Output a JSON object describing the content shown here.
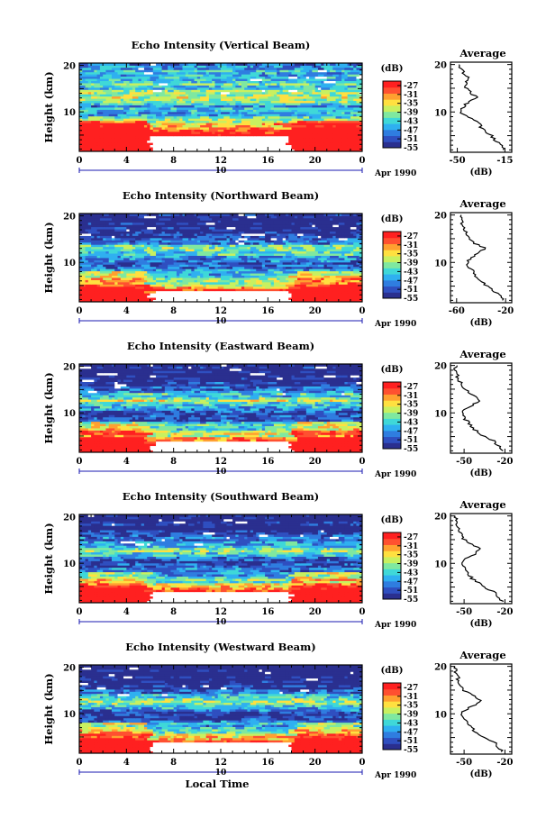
{
  "figure": {
    "xlabel": "Local Time",
    "date_label": "Apr 1990",
    "day_label": "10",
    "cbar_unit": "(dB)",
    "avg_title": "Average",
    "avg_xlabel": "(dB)",
    "ylabel": "Height (km)"
  },
  "colors": {
    "scale": [
      "#2a2f8f",
      "#2f4fc0",
      "#2f7de0",
      "#2fb0f0",
      "#3fd8d8",
      "#7fe8a0",
      "#c8f060",
      "#ffe040",
      "#ffa030",
      "#ff5030",
      "#ff2020"
    ],
    "missing": "#ffffff"
  },
  "chart_data": [
    {
      "type": "heatmap",
      "title": "Echo Intensity (Vertical Beam)",
      "xlabel": "",
      "ylabel": "Height (km)",
      "xlim": [
        0,
        24
      ],
      "ylim": [
        1.5,
        20.5
      ],
      "x_ticks": [
        "0",
        "4",
        "8",
        "12",
        "16",
        "20",
        "0"
      ],
      "y_ticks": [
        "20",
        "10"
      ],
      "colorbar": {
        "label": "(dB)",
        "ticks": [
          "-27",
          "-31",
          "-35",
          "-39",
          "-43",
          "-47",
          "-51",
          "-55"
        ],
        "range": [
          -55,
          -25
        ]
      },
      "gap": {
        "x": [
          6,
          18
        ],
        "y": [
          1.5,
          5
        ]
      },
      "profile_by_height": [
        [
          2,
          -15
        ],
        [
          3,
          -18
        ],
        [
          4,
          -22
        ],
        [
          5,
          -25
        ],
        [
          6,
          -30
        ],
        [
          7,
          -33
        ],
        [
          8,
          -36
        ],
        [
          9,
          -42
        ],
        [
          10,
          -48
        ],
        [
          11,
          -46
        ],
        [
          12,
          -42
        ],
        [
          13,
          -35
        ],
        [
          14,
          -40
        ],
        [
          15,
          -44
        ],
        [
          16,
          -43
        ],
        [
          17,
          -42
        ],
        [
          18,
          -45
        ],
        [
          19,
          -47
        ],
        [
          20,
          -48
        ]
      ],
      "average": {
        "title": "Average",
        "xlabel": "(dB)",
        "x_ticks": [
          "-50",
          "-15"
        ],
        "xlim": [
          -55,
          -10
        ],
        "y_ticks": [
          "20",
          "10"
        ]
      }
    },
    {
      "type": "heatmap",
      "title": "Echo Intensity (Northward Beam)",
      "xlabel": "",
      "ylabel": "Height (km)",
      "xlim": [
        0,
        24
      ],
      "ylim": [
        1.5,
        20.5
      ],
      "x_ticks": [
        "0",
        "4",
        "8",
        "12",
        "16",
        "20",
        "0"
      ],
      "y_ticks": [
        "20",
        "10"
      ],
      "colorbar": {
        "label": "(dB)",
        "ticks": [
          "-27",
          "-31",
          "-35",
          "-39",
          "-43",
          "-47",
          "-51",
          "-55"
        ],
        "range": [
          -55,
          -25
        ]
      },
      "gap": {
        "x": [
          6,
          18
        ],
        "y": [
          1.5,
          4
        ]
      },
      "profile_by_height": [
        [
          2,
          -22
        ],
        [
          3,
          -25
        ],
        [
          4,
          -30
        ],
        [
          5,
          -35
        ],
        [
          6,
          -40
        ],
        [
          7,
          -44
        ],
        [
          8,
          -46
        ],
        [
          9,
          -50
        ],
        [
          10,
          -52
        ],
        [
          11,
          -48
        ],
        [
          12,
          -42
        ],
        [
          13,
          -37
        ],
        [
          14,
          -45
        ],
        [
          15,
          -50
        ],
        [
          16,
          -52
        ],
        [
          17,
          -54
        ],
        [
          18,
          -55
        ],
        [
          19,
          -56
        ],
        [
          20,
          -56
        ]
      ],
      "average": {
        "title": "Average",
        "xlabel": "(dB)",
        "x_ticks": [
          "-60",
          "-20"
        ],
        "xlim": [
          -65,
          -15
        ],
        "y_ticks": [
          "20",
          "10"
        ]
      }
    },
    {
      "type": "heatmap",
      "title": "Echo Intensity (Eastward Beam)",
      "xlabel": "",
      "ylabel": "Height (km)",
      "xlim": [
        0,
        24
      ],
      "ylim": [
        1.5,
        20.5
      ],
      "x_ticks": [
        "0",
        "4",
        "8",
        "12",
        "16",
        "20",
        "0"
      ],
      "y_ticks": [
        "20",
        "10"
      ],
      "colorbar": {
        "label": "(dB)",
        "ticks": [
          "-27",
          "-31",
          "-35",
          "-39",
          "-43",
          "-47",
          "-51",
          "-55"
        ],
        "range": [
          -55,
          -25
        ]
      },
      "gap": {
        "x": [
          6,
          18
        ],
        "y": [
          1.5,
          4
        ]
      },
      "profile_by_height": [
        [
          2,
          -22
        ],
        [
          3,
          -25
        ],
        [
          4,
          -28
        ],
        [
          5,
          -35
        ],
        [
          6,
          -40
        ],
        [
          7,
          -45
        ],
        [
          8,
          -47
        ],
        [
          9,
          -50
        ],
        [
          10,
          -52
        ],
        [
          11,
          -48
        ],
        [
          12,
          -42
        ],
        [
          13,
          -38
        ],
        [
          14,
          -45
        ],
        [
          15,
          -50
        ],
        [
          16,
          -52
        ],
        [
          17,
          -54
        ],
        [
          18,
          -55
        ],
        [
          19,
          -56
        ],
        [
          20,
          -56
        ]
      ],
      "average": {
        "title": "Average",
        "xlabel": "(dB)",
        "x_ticks": [
          "-50",
          "-20"
        ],
        "xlim": [
          -60,
          -15
        ],
        "y_ticks": [
          "20",
          "10"
        ]
      }
    },
    {
      "type": "heatmap",
      "title": "Echo Intensity (Southward Beam)",
      "xlabel": "",
      "ylabel": "Height (km)",
      "xlim": [
        0,
        24
      ],
      "ylim": [
        1.5,
        20.5
      ],
      "x_ticks": [
        "0",
        "4",
        "8",
        "12",
        "16",
        "20",
        "0"
      ],
      "y_ticks": [
        "20",
        "10"
      ],
      "colorbar": {
        "label": "(dB)",
        "ticks": [
          "-27",
          "-31",
          "-35",
          "-39",
          "-43",
          "-47",
          "-51",
          "-55"
        ],
        "range": [
          -55,
          -25
        ]
      },
      "gap": {
        "x": [
          6,
          18
        ],
        "y": [
          1.5,
          4
        ]
      },
      "profile_by_height": [
        [
          2,
          -22
        ],
        [
          3,
          -25
        ],
        [
          4,
          -28
        ],
        [
          5,
          -35
        ],
        [
          6,
          -40
        ],
        [
          7,
          -45
        ],
        [
          8,
          -47
        ],
        [
          9,
          -50
        ],
        [
          10,
          -52
        ],
        [
          11,
          -48
        ],
        [
          12,
          -42
        ],
        [
          13,
          -38
        ],
        [
          14,
          -45
        ],
        [
          15,
          -50
        ],
        [
          16,
          -52
        ],
        [
          17,
          -54
        ],
        [
          18,
          -55
        ],
        [
          19,
          -56
        ],
        [
          20,
          -56
        ]
      ],
      "average": {
        "title": "Average",
        "xlabel": "(dB)",
        "x_ticks": [
          "-50",
          "-20"
        ],
        "xlim": [
          -60,
          -15
        ],
        "y_ticks": [
          "20",
          "10"
        ]
      }
    },
    {
      "type": "heatmap",
      "title": "Echo Intensity (Westward Beam)",
      "xlabel": "Local Time",
      "ylabel": "Height (km)",
      "xlim": [
        0,
        24
      ],
      "ylim": [
        1.5,
        20.5
      ],
      "x_ticks": [
        "0",
        "4",
        "8",
        "12",
        "16",
        "20",
        "0"
      ],
      "y_ticks": [
        "20",
        "10"
      ],
      "colorbar": {
        "label": "(dB)",
        "ticks": [
          "-27",
          "-31",
          "-35",
          "-39",
          "-43",
          "-47",
          "-51",
          "-55"
        ],
        "range": [
          -55,
          -25
        ]
      },
      "gap": {
        "x": [
          6,
          18
        ],
        "y": [
          1.5,
          4
        ]
      },
      "profile_by_height": [
        [
          2,
          -22
        ],
        [
          3,
          -25
        ],
        [
          4,
          -28
        ],
        [
          5,
          -35
        ],
        [
          6,
          -40
        ],
        [
          7,
          -45
        ],
        [
          8,
          -47
        ],
        [
          9,
          -50
        ],
        [
          10,
          -52
        ],
        [
          11,
          -48
        ],
        [
          12,
          -42
        ],
        [
          13,
          -38
        ],
        [
          14,
          -45
        ],
        [
          15,
          -50
        ],
        [
          16,
          -52
        ],
        [
          17,
          -54
        ],
        [
          18,
          -55
        ],
        [
          19,
          -56
        ],
        [
          20,
          -56
        ]
      ],
      "average": {
        "title": "Average",
        "xlabel": "(dB)",
        "x_ticks": [
          "-50",
          "-20"
        ],
        "xlim": [
          -60,
          -15
        ],
        "y_ticks": [
          "20",
          "10"
        ]
      }
    }
  ]
}
